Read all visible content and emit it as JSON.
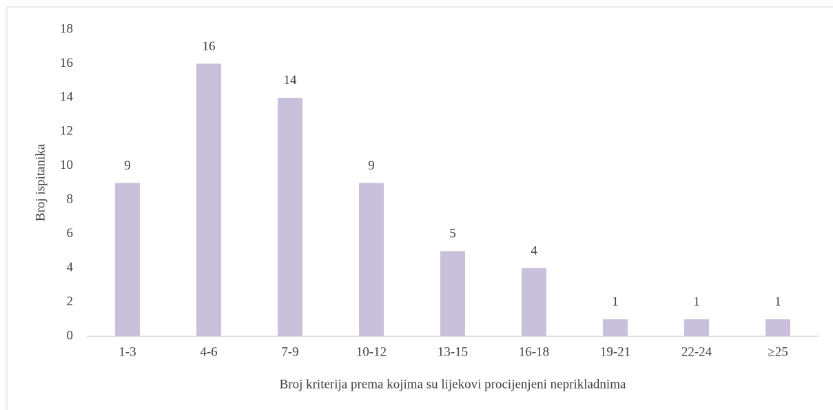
{
  "chart_data": {
    "type": "bar",
    "categories": [
      "1-3",
      "4-6",
      "7-9",
      "10-12",
      "13-15",
      "16-18",
      "19-21",
      "22-24",
      "≥25"
    ],
    "values": [
      9,
      16,
      14,
      9,
      5,
      4,
      1,
      1,
      1
    ],
    "color": "#c9c1dc",
    "xlabel": "Broj kriterija prema kojima su lijekovi procijenjeni neprikladnima",
    "ylabel": "Broj ispitanika",
    "ylim": [
      0,
      18
    ],
    "yticks": [
      0,
      2,
      4,
      6,
      8,
      10,
      12,
      14,
      16,
      18
    ],
    "grid": false,
    "data_labels": true
  }
}
